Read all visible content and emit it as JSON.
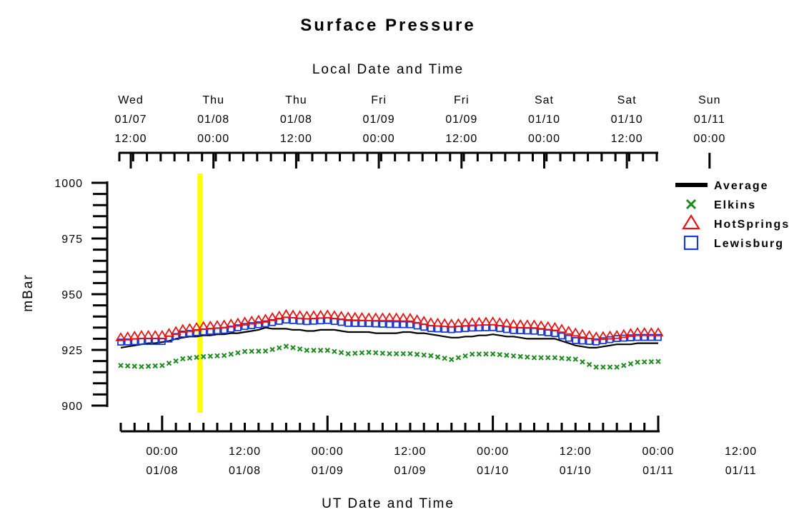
{
  "chart_data": {
    "type": "line",
    "title": "Surface Pressure",
    "top_xlabel": "Local Date and Time",
    "xlabel": "UT Date and Time",
    "ylabel": "mBar",
    "ylim": [
      900,
      1000
    ],
    "yticks": [
      "1000",
      "975",
      "950",
      "925",
      "900"
    ],
    "xlim_hours_since_0107_18UT": [
      0,
      78
    ],
    "bottom_ticks": [
      {
        "time": "00:00",
        "date": "01/08"
      },
      {
        "time": "12:00",
        "date": "01/08"
      },
      {
        "time": "00:00",
        "date": "01/09"
      },
      {
        "time": "12:00",
        "date": "01/09"
      },
      {
        "time": "00:00",
        "date": "01/10"
      },
      {
        "time": "12:00",
        "date": "01/10"
      },
      {
        "time": "00:00",
        "date": "01/11"
      },
      {
        "time": "12:00",
        "date": "01/11"
      }
    ],
    "top_ticks": [
      {
        "day": "Wed",
        "date": "01/07",
        "time": "12:00"
      },
      {
        "day": "Thu",
        "date": "01/08",
        "time": "00:00"
      },
      {
        "day": "Thu",
        "date": "01/08",
        "time": "12:00"
      },
      {
        "day": "Fri",
        "date": "01/09",
        "time": "00:00"
      },
      {
        "day": "Fri",
        "date": "01/09",
        "time": "12:00"
      },
      {
        "day": "Sat",
        "date": "01/10",
        "time": "00:00"
      },
      {
        "day": "Sat",
        "date": "01/10",
        "time": "12:00"
      },
      {
        "day": "Sun",
        "date": "01/11",
        "time": "00:00"
      }
    ],
    "marker_hour": 11.5,
    "hours": [
      0,
      3,
      6,
      9,
      12,
      15,
      18,
      21,
      24,
      27,
      30,
      33,
      36,
      39,
      42,
      45,
      48,
      51,
      54,
      57,
      60,
      63,
      66,
      69,
      72,
      75,
      78
    ],
    "series": [
      {
        "name": "Average",
        "color": "#000000",
        "style": "line",
        "values": [
          926,
          927.5,
          928.5,
          930.5,
          931.5,
          932,
          933,
          934.8,
          934.5,
          933.5,
          934.2,
          933,
          932.8,
          932.5,
          933.2,
          931.8,
          930.5,
          931.2,
          931.8,
          930.8,
          929.8,
          929.8,
          926.8,
          925.8,
          927.5,
          927.8,
          927.8
        ]
      },
      {
        "name": "Elkins",
        "color": "#1a8a1a",
        "style": "x",
        "values": [
          918,
          917.5,
          918,
          921,
          922,
          922.5,
          924.3,
          924.5,
          926.6,
          924.8,
          924.8,
          923.3,
          923.9,
          923.3,
          923.3,
          922.4,
          920.7,
          923.1,
          923.2,
          922.3,
          921.5,
          921.5,
          920.8,
          917.3,
          917.3,
          919.5,
          919.8
        ]
      },
      {
        "name": "HotSprings",
        "color": "#ee1111",
        "style": "triangle",
        "values": [
          930.5,
          931.5,
          931.5,
          934.2,
          935.5,
          936.2,
          937.5,
          938.8,
          940.9,
          940.2,
          940.7,
          939.8,
          939.4,
          939.4,
          939.2,
          937.2,
          936.6,
          937.2,
          937.6,
          936.4,
          936.2,
          935.1,
          932.6,
          930.8,
          931.5,
          932.8,
          932.7
        ]
      },
      {
        "name": "Lewisburg",
        "color": "#1a3ad0",
        "style": "square",
        "values": [
          928.5,
          928.8,
          928.8,
          932.1,
          933.1,
          933.8,
          935.5,
          936.7,
          938.4,
          937.7,
          938.2,
          936.9,
          936.8,
          936.4,
          936.3,
          934.6,
          934.1,
          934.8,
          935.0,
          933.7,
          933.4,
          932.3,
          929.2,
          928.6,
          930.1,
          930.6,
          930.6
        ]
      }
    ]
  }
}
